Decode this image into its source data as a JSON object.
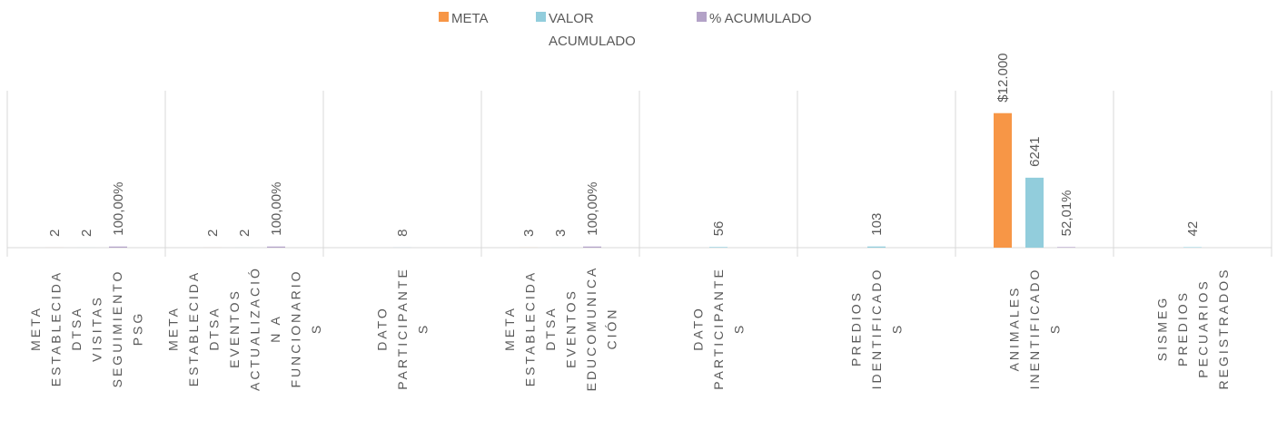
{
  "chart_data": {
    "type": "bar",
    "categories": [
      "META\nESTABLECIDA\nDTSA\nVISITAS\nSEGUIMIENTO\nPSG",
      "META\nESTABLECIDA\nDTSA\nEVENTOS\nACTUALIZACIÓ\nN A\nFUNCIONARIO\nS",
      "DATO\nPARTICIPANTE\nS",
      "META\nESTABLECIDA\nDTSA\nEVENTOS\nEDUCOMUNICA\nCIÓN",
      "DATO\nPARTICIPANTE\nS",
      "PREDIOS\nIDENTIFICADO\nS",
      "ANIMALES\nINENTIFICADO\nS",
      "SISMEG\nPREDIOS\nPECUARIOS\nREGISTRADOS"
    ],
    "series": [
      {
        "name": "META",
        "color": "#f79646",
        "values": [
          2,
          2,
          null,
          3,
          null,
          null,
          12000,
          null
        ],
        "value_labels": [
          null,
          null,
          null,
          null,
          null,
          null,
          "$12.000",
          null
        ]
      },
      {
        "name": "VALOR ACUMULADO",
        "color": "#92cddc",
        "values": [
          2,
          2,
          8,
          3,
          56,
          103,
          6241,
          42
        ]
      },
      {
        "name": "% ACUMULADO",
        "color": "#b3a2c7",
        "values": [
          100,
          100,
          null,
          100,
          null,
          null,
          52.01,
          null
        ],
        "value_labels": [
          "100,00%",
          "100,00%",
          null,
          "100,00%",
          null,
          null,
          "52,01%",
          null
        ]
      }
    ],
    "ylim": [
      0,
      14000
    ],
    "legend": "top"
  }
}
